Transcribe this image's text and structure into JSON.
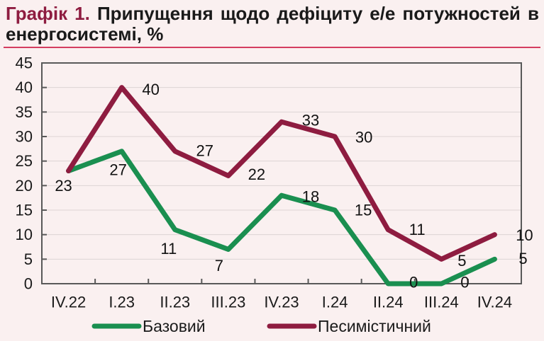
{
  "title": {
    "prefix": "Графік 1.",
    "line1": "Припущення щодо дефіциту е/е потужностей в",
    "line2": "енергосистемі, %"
  },
  "colors": {
    "background": "#faf0f0",
    "title_accent": "#8e1c40",
    "title_rule": "#d43d60",
    "axis_border": "#595959",
    "gridline": "#ddd4d4",
    "text": "#1a1a1a"
  },
  "chart_data": {
    "type": "line",
    "title": "Припущення щодо дефіциту е/е потужностей в енергосистемі, %",
    "categories": [
      "IV.22",
      "I.23",
      "II.23",
      "III.23",
      "IV.23",
      "I.24",
      "II.24",
      "III.24",
      "IV.24"
    ],
    "yticks": [
      0,
      5,
      10,
      15,
      20,
      25,
      30,
      35,
      40,
      45
    ],
    "ylim": [
      0,
      45
    ],
    "grid": true,
    "legend_position": "bottom",
    "series": [
      {
        "name": "Базовий",
        "color": "#1a8f50",
        "values": [
          23,
          27,
          11,
          7,
          18,
          15,
          0,
          0,
          5
        ],
        "labels": [
          "23",
          "27",
          "11",
          "7",
          "18",
          "15",
          "0",
          "0",
          "5"
        ],
        "label_offsets": [
          [
            -7,
            21
          ],
          [
            -5,
            26
          ],
          [
            -9,
            27
          ],
          [
            -13,
            23
          ],
          [
            41,
            2
          ],
          [
            40,
            0
          ],
          [
            36,
            -2
          ],
          [
            33,
            -2
          ],
          [
            40,
            -1
          ]
        ]
      },
      {
        "name": "Песимістичний",
        "color": "#8e1c40",
        "values": [
          23,
          40,
          27,
          22,
          33,
          30,
          11,
          5,
          10
        ],
        "labels": [
          null,
          "40",
          "27",
          "22",
          "33",
          "30",
          "11",
          "5",
          "10"
        ],
        "label_offsets": [
          [
            0,
            0
          ],
          [
            41,
            3
          ],
          [
            42,
            -1
          ],
          [
            40,
            -2
          ],
          [
            41,
            -2
          ],
          [
            41,
            1
          ],
          [
            41,
            0
          ],
          [
            29,
            2
          ],
          [
            42,
            1
          ]
        ]
      }
    ]
  }
}
